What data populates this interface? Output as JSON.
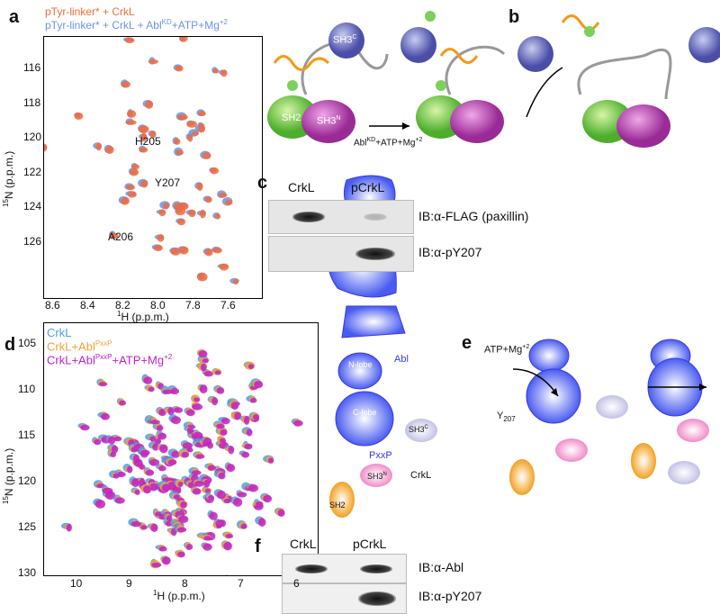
{
  "panel_a": {
    "label": "a",
    "legend": [
      {
        "text": "pTyr-linker* + CrkL",
        "color": "#f26a3a"
      },
      {
        "text": "pTyr-linker* + CrkL + Abl",
        "sup": "KD",
        "tail": "+ATP+Mg",
        "tailsup": "+2",
        "color": "#6b93e6"
      }
    ],
    "y_ticks": [
      "116",
      "118",
      "120",
      "122",
      "124",
      "126"
    ],
    "x_ticks": [
      "8.6",
      "8.4",
      "8.2",
      "8.0",
      "7.8",
      "7.6"
    ],
    "ylabel_sup": "15",
    "ylabel": "N (p.p.m.)",
    "xlabel_sup": "1",
    "xlabel": "H (p.p.m.)",
    "annotations": [
      "H205",
      "Y207",
      "A206"
    ]
  },
  "panel_b": {
    "label": "b",
    "domains": [
      "SH2",
      "SH3",
      "N",
      "SH3",
      "C"
    ],
    "arrow_label": "Abl",
    "arrow_sup": "KD",
    "arrow_tail": "+ATP+Mg",
    "arrow_tailsup": "+2",
    "phospho": "P"
  },
  "panel_c": {
    "label": "c",
    "lanes": [
      "CrkL",
      "pCrkL"
    ],
    "rows": [
      "IB:α-FLAG (paxillin)",
      "IB:α-pY207"
    ]
  },
  "panel_d": {
    "label": "d",
    "legend": [
      {
        "text": "CrkL",
        "color": "#4a9ee8"
      },
      {
        "text": "CrkL+Abl",
        "sup": "PxxP",
        "color": "#f2a03a"
      },
      {
        "text": "CrkL+Abl",
        "sup": "PxxP",
        "tail": "+ATP+Mg",
        "tailsup": "+2",
        "color": "#c020c8"
      }
    ],
    "y_ticks": [
      "105",
      "110",
      "115",
      "120",
      "125",
      "130"
    ],
    "x_ticks": [
      "10",
      "9",
      "8",
      "7",
      "6"
    ],
    "ylabel_sup": "15",
    "ylabel": "N (p.p.m.)",
    "xlabel_sup": "1",
    "xlabel": "H (p.p.m.)"
  },
  "panel_e": {
    "label": "e",
    "labels": [
      "N-lobe",
      "Abl",
      "C-lobe",
      "PxxP",
      "SH3",
      "C",
      "SH3",
      "N",
      "CrkL",
      "SH2",
      "Y",
      "207"
    ],
    "arrow_label": "ATP+Mg",
    "arrow_sup": "+2"
  },
  "panel_f": {
    "label": "f",
    "lanes": [
      "CrkL",
      "pCrkL"
    ],
    "rows": [
      "IB:α-Abl",
      "IB:α-pY207"
    ]
  }
}
